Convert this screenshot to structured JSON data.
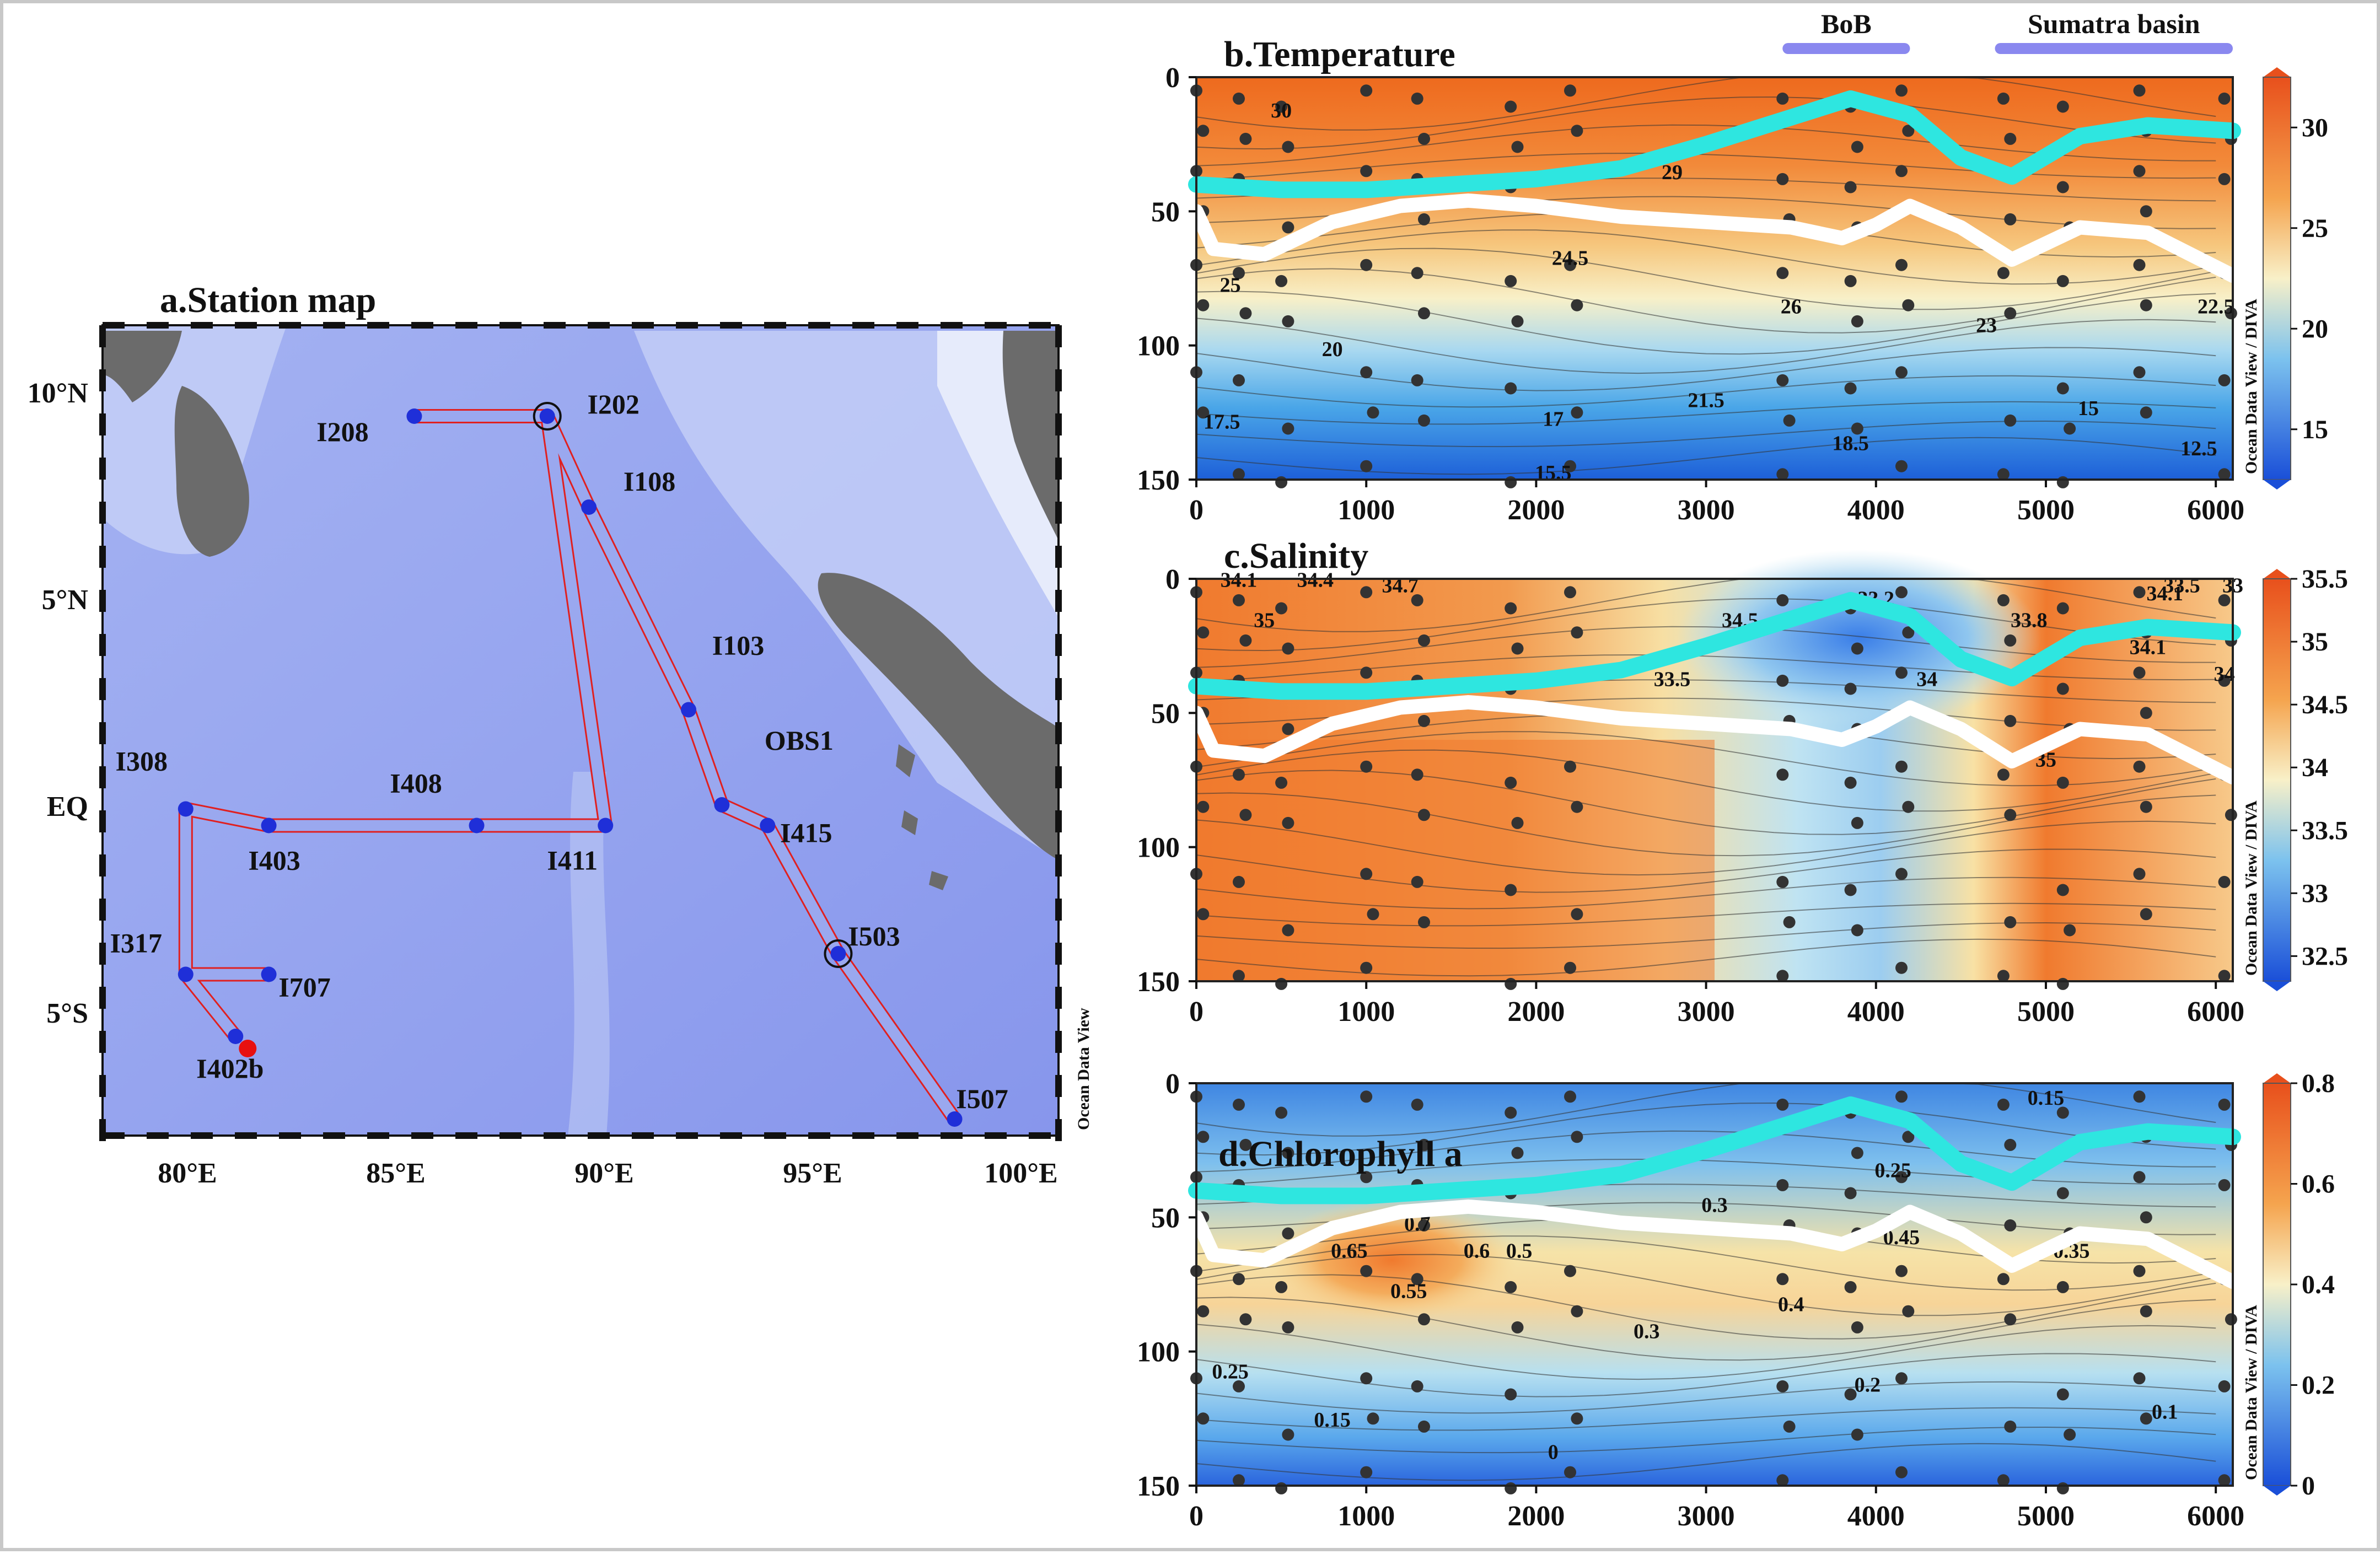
{
  "colors": {
    "ocean": "#8f9ff0",
    "shelf": "#cfd8f8",
    "land": "#6b6b6b",
    "track": "#e02020",
    "station": "#1f2fd8",
    "start_station": "#e81010",
    "mld_line": "#ffffff",
    "euphotic_line": "#2ee6e0",
    "sample_dot": "#333333",
    "bar": "#8a88ef"
  },
  "map": {
    "title": "a.Station map",
    "lat_labels": [
      "10°N",
      "5°N",
      "EQ",
      "5°S"
    ],
    "lon_labels": [
      "80°E",
      "85°E",
      "90°E",
      "95°E",
      "100°E"
    ],
    "side_label": "Ocean Data View",
    "stations": [
      {
        "id": "I208",
        "lon": 85.5,
        "lat": 10
      },
      {
        "id": "I202",
        "lon": 88.7,
        "lat": 10,
        "ring": true
      },
      {
        "id": "I108",
        "lon": 89.7,
        "lat": 7.8
      },
      {
        "id": "I103",
        "lon": 92.1,
        "lat": 2.9
      },
      {
        "id": "OBS1",
        "lon": 92.9,
        "lat": 0.6
      },
      {
        "id": "I415",
        "lon": 94.0,
        "lat": 0.1
      },
      {
        "id": "I503",
        "lon": 95.7,
        "lat": -3.0,
        "ring": true
      },
      {
        "id": "I507",
        "lon": 98.5,
        "lat": -7.0
      },
      {
        "id": "I411",
        "lon": 90.1,
        "lat": 0.1
      },
      {
        "id": "I408",
        "lon": 87.0,
        "lat": 0.1
      },
      {
        "id": "I403",
        "lon": 82.0,
        "lat": 0.1
      },
      {
        "id": "I308",
        "lon": 80.0,
        "lat": 0.5
      },
      {
        "id": "I707",
        "lon": 82.0,
        "lat": -3.5
      },
      {
        "id": "I317",
        "lon": 80.0,
        "lat": -3.5
      },
      {
        "id": "I402b",
        "lon": 81.2,
        "lat": -5.0
      }
    ]
  },
  "chart_data": [
    {
      "type": "heatmap",
      "title": "b.Temperature",
      "x_ticks": [
        "0",
        "1000",
        "2000",
        "3000",
        "4000",
        "5000",
        "6000"
      ],
      "y_ticks": [
        "0",
        "50",
        "100",
        "150"
      ],
      "xlim": [
        0,
        6100
      ],
      "ylim": [
        0,
        150
      ],
      "colorbar": {
        "ticks": [
          "30",
          "25",
          "20",
          "15"
        ],
        "range": [
          12.5,
          32.5
        ],
        "label": "Ocean Data View / DIVA"
      },
      "regions": [
        {
          "label": "BoB",
          "x": [
            3450,
            4200
          ]
        },
        {
          "label": "Sumatra basin",
          "x": [
            4700,
            6100
          ]
        }
      ],
      "contour_labels": [
        "30",
        "29",
        "24.5",
        "25",
        "26",
        "23",
        "22.5",
        "20",
        "21.5",
        "17.5",
        "17",
        "18.5",
        "15",
        "12.5",
        "15.5"
      ],
      "euphotic_depth": {
        "x": [
          0,
          500,
          1000,
          1500,
          2000,
          2500,
          3000,
          3500,
          3850,
          4200,
          4500,
          4800,
          5200,
          5600,
          6100
        ],
        "y": [
          40,
          42,
          42,
          40,
          38,
          34,
          25,
          15,
          8,
          14,
          30,
          37,
          22,
          18,
          20
        ]
      },
      "mixed_layer_depth": {
        "x": [
          0,
          100,
          400,
          800,
          1200,
          1600,
          2000,
          2500,
          3000,
          3500,
          3800,
          4000,
          4200,
          4500,
          4800,
          5200,
          5600,
          6100
        ],
        "y": [
          50,
          64,
          66,
          54,
          48,
          46,
          48,
          52,
          54,
          56,
          60,
          55,
          48,
          56,
          68,
          56,
          58,
          74
        ]
      }
    },
    {
      "type": "heatmap",
      "title": "c.Salinity",
      "x_ticks": [
        "0",
        "1000",
        "2000",
        "3000",
        "4000",
        "5000",
        "6000"
      ],
      "y_ticks": [
        "0",
        "50",
        "100",
        "150"
      ],
      "xlim": [
        0,
        6100
      ],
      "ylim": [
        0,
        150
      ],
      "colorbar": {
        "ticks": [
          "35.5",
          "35",
          "34.5",
          "34",
          "33.5",
          "33",
          "32.5"
        ],
        "range": [
          32.3,
          35.5
        ],
        "label": "Ocean Data View / DIVA"
      },
      "contour_labels": [
        "34.1",
        "34.4",
        "35",
        "34.7",
        "34.5",
        "33.5",
        "33.2",
        "34",
        "33.8",
        "34.1",
        "34.1",
        "33.5",
        "35",
        "34",
        "33"
      ],
      "euphotic_depth": {
        "x": [
          0,
          500,
          1000,
          1500,
          2000,
          2500,
          3000,
          3500,
          3850,
          4200,
          4500,
          4800,
          5200,
          5600,
          6100
        ],
        "y": [
          40,
          42,
          42,
          40,
          38,
          34,
          25,
          15,
          8,
          14,
          30,
          37,
          22,
          18,
          20
        ]
      },
      "mixed_layer_depth": {
        "x": [
          0,
          100,
          400,
          800,
          1200,
          1600,
          2000,
          2500,
          3000,
          3500,
          3800,
          4000,
          4200,
          4500,
          4800,
          5200,
          5600,
          6100
        ],
        "y": [
          50,
          64,
          66,
          54,
          48,
          46,
          48,
          52,
          54,
          56,
          60,
          55,
          48,
          56,
          68,
          56,
          58,
          74
        ]
      }
    },
    {
      "type": "heatmap",
      "title": "d.Chlorophyll a",
      "x_ticks": [
        "0",
        "1000",
        "2000",
        "3000",
        "4000",
        "5000",
        "6000"
      ],
      "y_ticks": [
        "0",
        "50",
        "100",
        "150"
      ],
      "xlim": [
        0,
        6100
      ],
      "ylim": [
        0,
        150
      ],
      "colorbar": {
        "ticks": [
          "0.8",
          "0.6",
          "0.4",
          "0.2",
          "0"
        ],
        "range": [
          0,
          0.8
        ],
        "label": "Ocean Data View / DIVA"
      },
      "contour_labels": [
        "0.15",
        "0.25",
        "0.3",
        "0.45",
        "0.7",
        "0.65",
        "0.6",
        "0.5",
        "0.55",
        "0.4",
        "0.35",
        "0.3",
        "0.25",
        "0.2",
        "0.15",
        "0.1",
        "0"
      ],
      "euphotic_depth": {
        "x": [
          0,
          500,
          1000,
          1500,
          2000,
          2500,
          3000,
          3500,
          3850,
          4200,
          4500,
          4800,
          5200,
          5600,
          6100
        ],
        "y": [
          40,
          42,
          42,
          40,
          38,
          34,
          25,
          15,
          8,
          14,
          30,
          37,
          22,
          18,
          20
        ]
      },
      "mixed_layer_depth": {
        "x": [
          0,
          100,
          400,
          800,
          1200,
          1600,
          2000,
          2500,
          3000,
          3500,
          3800,
          4000,
          4200,
          4500,
          4800,
          5200,
          5600,
          6100
        ],
        "y": [
          50,
          64,
          66,
          54,
          48,
          46,
          48,
          52,
          54,
          56,
          60,
          55,
          48,
          56,
          68,
          56,
          58,
          74
        ]
      }
    }
  ]
}
